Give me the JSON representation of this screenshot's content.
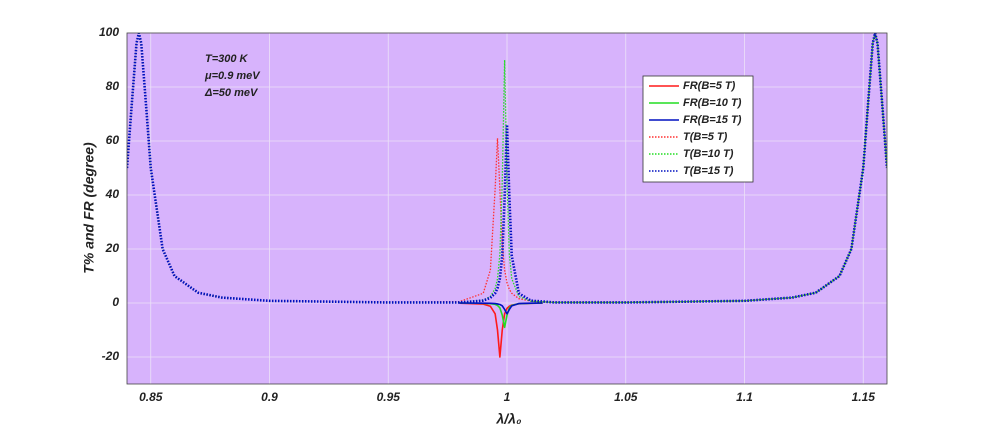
{
  "chart_data": {
    "type": "line",
    "xlabel": "λ/λ₀",
    "ylabel": "T% and FR (degree)",
    "annotations": [
      "T=300 K",
      "μ=0.9 meV",
      "Δ=50 meV"
    ],
    "xlim": [
      0.84,
      1.16
    ],
    "ylim": [
      -30,
      100
    ],
    "xticks": [
      0.85,
      0.9,
      0.95,
      1,
      1.05,
      1.1,
      1.15
    ],
    "yticks": [
      -20,
      0,
      20,
      40,
      60,
      80,
      100
    ],
    "grid": true,
    "legend": "upper right",
    "background": "#d7b3fc",
    "series": [
      {
        "name": "FR(B=5 T)",
        "color": "#ff1a1a",
        "style": "solid",
        "x": [
          0.98,
          0.99,
          0.993,
          0.995,
          0.996,
          0.997,
          0.998,
          0.999,
          1.0,
          1.001,
          1.002,
          1.005,
          1.01,
          1.015
        ],
        "values": [
          -0.07,
          -0.4,
          -1.2,
          -4,
          -10,
          -20,
          -10,
          -4,
          -2,
          -1.2,
          -0.8,
          -0.3,
          -0.1,
          -0.05
        ]
      },
      {
        "name": "FR(B=10 T)",
        "color": "#22dd22",
        "style": "solid",
        "x": [
          0.98,
          0.99,
          0.993,
          0.995,
          0.996,
          0.997,
          0.998,
          0.999,
          1.0,
          1.001,
          1.002,
          1.005,
          1.01,
          1.015
        ],
        "values": [
          0,
          -0.1,
          -0.25,
          -0.5,
          -0.9,
          -1.8,
          -4.5,
          -9,
          -4.5,
          -1.8,
          -0.9,
          -0.25,
          -0.1,
          0
        ]
      },
      {
        "name": "FR(B=15 T)",
        "color": "#0010c0",
        "style": "solid",
        "x": [
          0.98,
          0.99,
          0.993,
          0.995,
          0.996,
          0.997,
          0.998,
          0.999,
          1.0,
          1.001,
          1.002,
          1.005,
          1.01,
          1.015
        ],
        "values": [
          0,
          -0.06,
          -0.1,
          -0.2,
          -0.35,
          -0.55,
          -1.05,
          -2.4,
          -4,
          -2.4,
          -1.05,
          -0.2,
          -0.06,
          0
        ]
      },
      {
        "name": "T(B=5 T)",
        "color": "#ff3030",
        "style": "dotted",
        "x": [
          0.84,
          0.842,
          0.844,
          0.845,
          0.846,
          0.848,
          0.85,
          0.855,
          0.86,
          0.87,
          0.88,
          0.9,
          0.95,
          0.98,
          0.99,
          0.993,
          0.995,
          0.996,
          0.997,
          0.998,
          0.999,
          1.0,
          1.001,
          1.002,
          1.005,
          1.01,
          1.02,
          1.05,
          1.1,
          1.12,
          1.13,
          1.14,
          1.145,
          1.15,
          1.152,
          1.154,
          1.155,
          1.156,
          1.158,
          1.16
        ],
        "values": [
          50,
          73.5,
          96.2,
          100,
          96.2,
          73.5,
          50,
          20,
          10,
          3.8,
          2,
          0.8,
          0.2,
          0.5,
          3.6,
          12.2,
          42.2,
          61,
          42.2,
          21.9,
          12.2,
          7.5,
          5,
          3.6,
          1.6,
          0.7,
          0.2,
          0.2,
          0.8,
          2,
          3.8,
          10,
          20,
          50,
          73.5,
          96.2,
          100,
          96.2,
          73.5,
          50
        ]
      },
      {
        "name": "T(B=10 T)",
        "color": "#22dd22",
        "style": "dotted",
        "x": [
          0.84,
          0.842,
          0.844,
          0.845,
          0.846,
          0.848,
          0.85,
          0.855,
          0.86,
          0.87,
          0.88,
          0.9,
          0.95,
          0.98,
          0.99,
          0.993,
          0.995,
          0.996,
          0.997,
          0.998,
          0.999,
          1.0,
          1.001,
          1.002,
          1.005,
          1.01,
          1.02,
          1.05,
          1.1,
          1.12,
          1.13,
          1.14,
          1.145,
          1.15,
          1.152,
          1.154,
          1.155,
          1.156,
          1.158,
          1.16
        ],
        "values": [
          50,
          73.5,
          96.2,
          100,
          96.2,
          73.5,
          50,
          20,
          10,
          3.8,
          2,
          0.8,
          0.2,
          0.2,
          1.1,
          2.4,
          5.3,
          9,
          18,
          45,
          90,
          45,
          18,
          9,
          2.4,
          0.7,
          0.2,
          0.2,
          0.8,
          2,
          3.8,
          10,
          20,
          50,
          73.5,
          96.2,
          100,
          96.2,
          73.5,
          50
        ]
      },
      {
        "name": "T(B=15 T)",
        "color": "#0010c0",
        "style": "dotted",
        "x": [
          0.84,
          0.842,
          0.844,
          0.845,
          0.846,
          0.848,
          0.85,
          0.855,
          0.86,
          0.87,
          0.88,
          0.9,
          0.95,
          0.98,
          0.99,
          0.993,
          0.995,
          0.996,
          0.997,
          0.998,
          0.999,
          1.0,
          1.001,
          1.002,
          1.005,
          1.01,
          1.02,
          1.05,
          1.1,
          1.12,
          1.13,
          1.14,
          1.145,
          1.15,
          1.152,
          1.154,
          1.155,
          1.156,
          1.158,
          1.16
        ],
        "values": [
          50,
          73.5,
          96.2,
          100,
          96.2,
          73.5,
          50,
          20,
          10,
          3.8,
          2,
          0.8,
          0.2,
          0.2,
          0.9,
          1.9,
          3.6,
          5.5,
          9.1,
          17.5,
          39,
          66,
          39,
          17.5,
          3.6,
          0.9,
          0.2,
          0.2,
          0.8,
          2,
          3.8,
          10,
          20,
          50,
          73.5,
          96.2,
          100,
          96.2,
          73.5,
          50
        ]
      }
    ]
  }
}
